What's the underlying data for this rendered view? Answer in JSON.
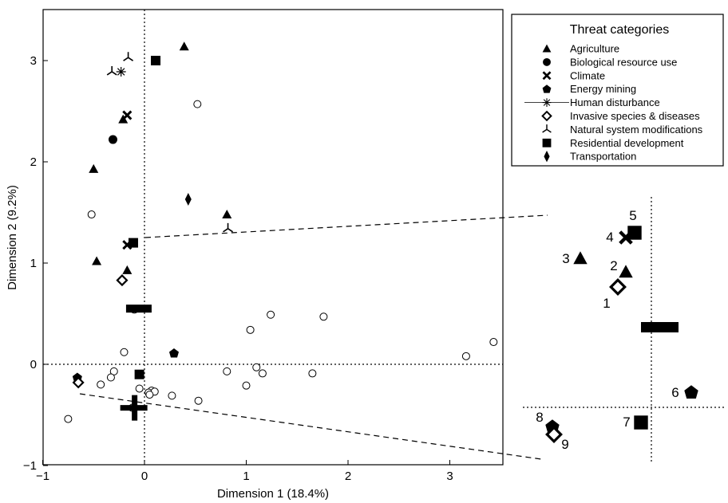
{
  "chart_data": {
    "type": "scatter",
    "xlabel": "Dimension 1 (18.4%)",
    "ylabel": "Dimension 2 (9.2%)",
    "xlim": [
      -1,
      3.5
    ],
    "ylim": [
      -1,
      3.5
    ],
    "xticks": [
      "−1",
      "0",
      "1",
      "2",
      "3"
    ],
    "yticks": [
      "−1",
      "0",
      "1",
      "2",
      "3"
    ],
    "grid": false,
    "legend": {
      "title": "Threat categories",
      "placement": "top-right",
      "entries": [
        {
          "label": "Agriculture",
          "marker": "triangle"
        },
        {
          "label": "Biological resource use",
          "marker": "circle"
        },
        {
          "label": "Climate",
          "marker": "x"
        },
        {
          "label": "Energy mining",
          "marker": "pentagon"
        },
        {
          "label": "Human disturbance",
          "marker": "asterisk"
        },
        {
          "label": "Invasive species & diseases",
          "marker": "diamond-open"
        },
        {
          "label": "Natural system modifications",
          "marker": "tri"
        },
        {
          "label": "Residential development",
          "marker": "square"
        },
        {
          "label": "Transportation",
          "marker": "diamond-thin"
        }
      ]
    },
    "species_points": [
      [
        0.52,
        2.57
      ],
      [
        -0.52,
        1.48
      ],
      [
        -0.1,
        0.54
      ],
      [
        1.04,
        0.34
      ],
      [
        1.24,
        0.49
      ],
      [
        1.76,
        0.47
      ],
      [
        -0.2,
        0.12
      ],
      [
        -0.3,
        -0.07
      ],
      [
        -0.33,
        -0.13
      ],
      [
        -0.43,
        -0.2
      ],
      [
        -0.75,
        -0.54
      ],
      [
        0.81,
        -0.07
      ],
      [
        1.1,
        -0.03
      ],
      [
        1.16,
        -0.09
      ],
      [
        1.0,
        -0.21
      ],
      [
        1.65,
        -0.09
      ],
      [
        3.16,
        0.08
      ],
      [
        3.43,
        0.22
      ],
      [
        -0.05,
        -0.24
      ],
      [
        0.07,
        -0.26
      ],
      [
        0.04,
        -0.28
      ],
      [
        0.1,
        -0.27
      ],
      [
        0.27,
        -0.31
      ],
      [
        0.53,
        -0.36
      ],
      [
        -0.12,
        -0.43
      ],
      [
        0.05,
        -0.3
      ]
    ],
    "threat_points": [
      {
        "category": "Agriculture",
        "x": 0.39,
        "y": 3.14
      },
      {
        "category": "Agriculture",
        "x": -0.5,
        "y": 1.93
      },
      {
        "category": "Agriculture",
        "x": 0.81,
        "y": 1.48
      },
      {
        "category": "Agriculture",
        "x": -0.47,
        "y": 1.02
      },
      {
        "category": "Agriculture",
        "x": -0.17,
        "y": 0.93
      },
      {
        "category": "Agriculture",
        "x": -0.21,
        "y": 2.42
      },
      {
        "category": "Biological resource use",
        "x": -0.31,
        "y": 2.22
      },
      {
        "category": "Climate",
        "x": -0.17,
        "y": 2.46
      },
      {
        "category": "Climate",
        "x": -0.17,
        "y": 1.18
      },
      {
        "category": "Energy mining",
        "x": 0.29,
        "y": 0.11
      },
      {
        "category": "Energy mining",
        "x": -0.66,
        "y": -0.13
      },
      {
        "category": "Human disturbance",
        "x": -0.23,
        "y": 2.89
      },
      {
        "category": "Invasive species & diseases",
        "x": -0.22,
        "y": 0.83
      },
      {
        "category": "Invasive species & diseases",
        "x": -0.65,
        "y": -0.18
      },
      {
        "category": "Natural system modifications",
        "x": -0.16,
        "y": 3.03
      },
      {
        "category": "Natural system modifications",
        "x": -0.32,
        "y": 2.89
      },
      {
        "category": "Natural system modifications",
        "x": 0.82,
        "y": 1.34
      },
      {
        "category": "Residential development",
        "x": 0.11,
        "y": 3.0
      },
      {
        "category": "Residential development",
        "x": -0.11,
        "y": 1.2
      },
      {
        "category": "Residential development",
        "x": -0.05,
        "y": -0.1
      },
      {
        "category": "Transportation",
        "x": 0.43,
        "y": 1.63
      }
    ],
    "centroids": [
      {
        "shape": "bar",
        "x": 0.07,
        "y": 0.55
      },
      {
        "shape": "cross",
        "x": -0.05,
        "y": -0.43
      }
    ],
    "inset": {
      "points": [
        {
          "label": "1",
          "marker": "diamond-open"
        },
        {
          "label": "2",
          "marker": "triangle"
        },
        {
          "label": "3",
          "marker": "triangle"
        },
        {
          "label": "4",
          "marker": "x"
        },
        {
          "label": "5",
          "marker": "square"
        },
        {
          "label": "6",
          "marker": "pentagon"
        },
        {
          "label": "7",
          "marker": "square"
        },
        {
          "label": "8",
          "marker": "pentagon"
        },
        {
          "label": "9",
          "marker": "diamond-open"
        }
      ]
    }
  }
}
